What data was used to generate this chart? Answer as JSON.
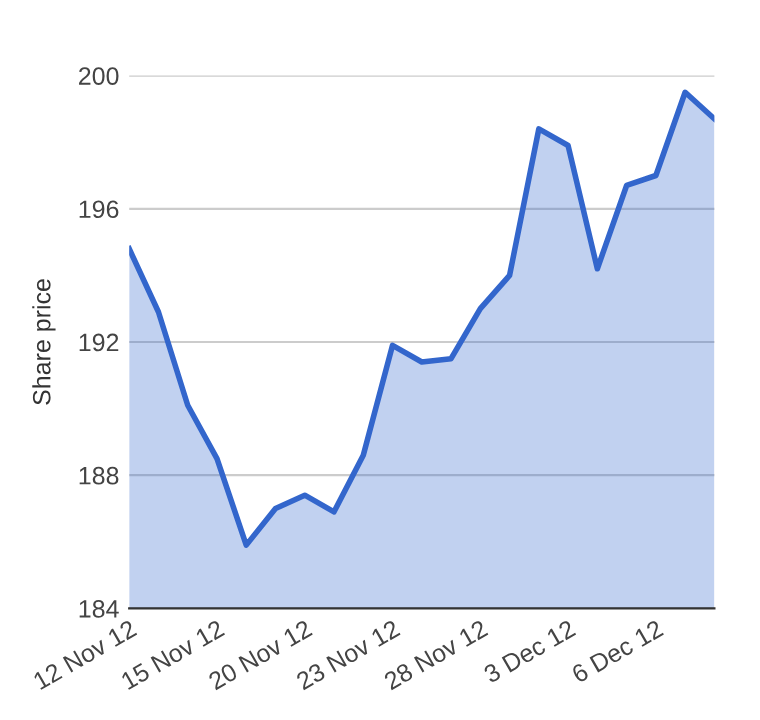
{
  "chart_data": {
    "type": "area",
    "ylabel": "Share price",
    "categories": [
      "12 Nov 12",
      null,
      null,
      "15 Nov 12",
      null,
      null,
      "20 Nov 12",
      null,
      null,
      "23 Nov 12",
      null,
      null,
      "28 Nov 12",
      null,
      null,
      "3 Dec 12",
      null,
      null,
      "6 Dec 12",
      null,
      null
    ],
    "series": [
      {
        "color": "#3366cc",
        "values": [
          194.8,
          192.9,
          190.1,
          188.5,
          185.9,
          187.0,
          187.4,
          186.9,
          188.6,
          191.9,
          191.4,
          191.5,
          193.0,
          194.0,
          198.4,
          197.9,
          194.2,
          196.7,
          197.0,
          199.5,
          198.7
        ]
      }
    ],
    "ylim": [
      184,
      200
    ],
    "yticks": [
      184,
      188,
      192,
      196,
      200
    ],
    "grid": "y"
  }
}
